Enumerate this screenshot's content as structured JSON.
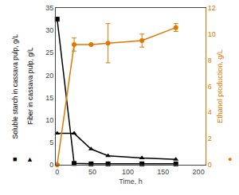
{
  "chart_data": {
    "type": "line",
    "xlabel": "Time, h",
    "ylabel": [
      "Soluble starch in cassava pulp, g/L",
      "Fiber in cassava pulp, g/L"
    ],
    "y2label": "Ethanol production, g/L",
    "x": [
      0,
      24,
      48,
      72,
      120,
      168
    ],
    "series": [
      {
        "color": "black",
        "marker": "square",
        "values": [
          32.5,
          0.3,
          0.2,
          0.2,
          0.2,
          0.2
        ]
      },
      {
        "color": "black",
        "marker": "triangle-up",
        "values": [
          7.0,
          7.0,
          3.5,
          2.0,
          1.5,
          1.2
        ]
      },
      {
        "color": "#e07800",
        "marker": "circle",
        "axis": "y2",
        "values": [
          0.0,
          9.2,
          9.2,
          9.3,
          9.5,
          10.5
        ],
        "errors": [
          0.0,
          0.5,
          0.0,
          1.5,
          0.5,
          0.3
        ]
      }
    ],
    "xlim": [
      -2,
      210
    ],
    "xticks": [
      0,
      50,
      100,
      150,
      200
    ],
    "ylim": [
      0,
      35
    ],
    "yticks": [
      0,
      5,
      10,
      15,
      20,
      25,
      30,
      35
    ],
    "y2lim": [
      0,
      12
    ],
    "y2ticks": [
      0,
      2,
      4,
      6,
      8,
      10,
      12
    ],
    "grid": false,
    "annotations": [
      {
        "text": "■",
        "color": "black"
      },
      {
        "text": "▲",
        "color": "black"
      },
      {
        "text": "●",
        "color": "#e07800"
      }
    ]
  }
}
